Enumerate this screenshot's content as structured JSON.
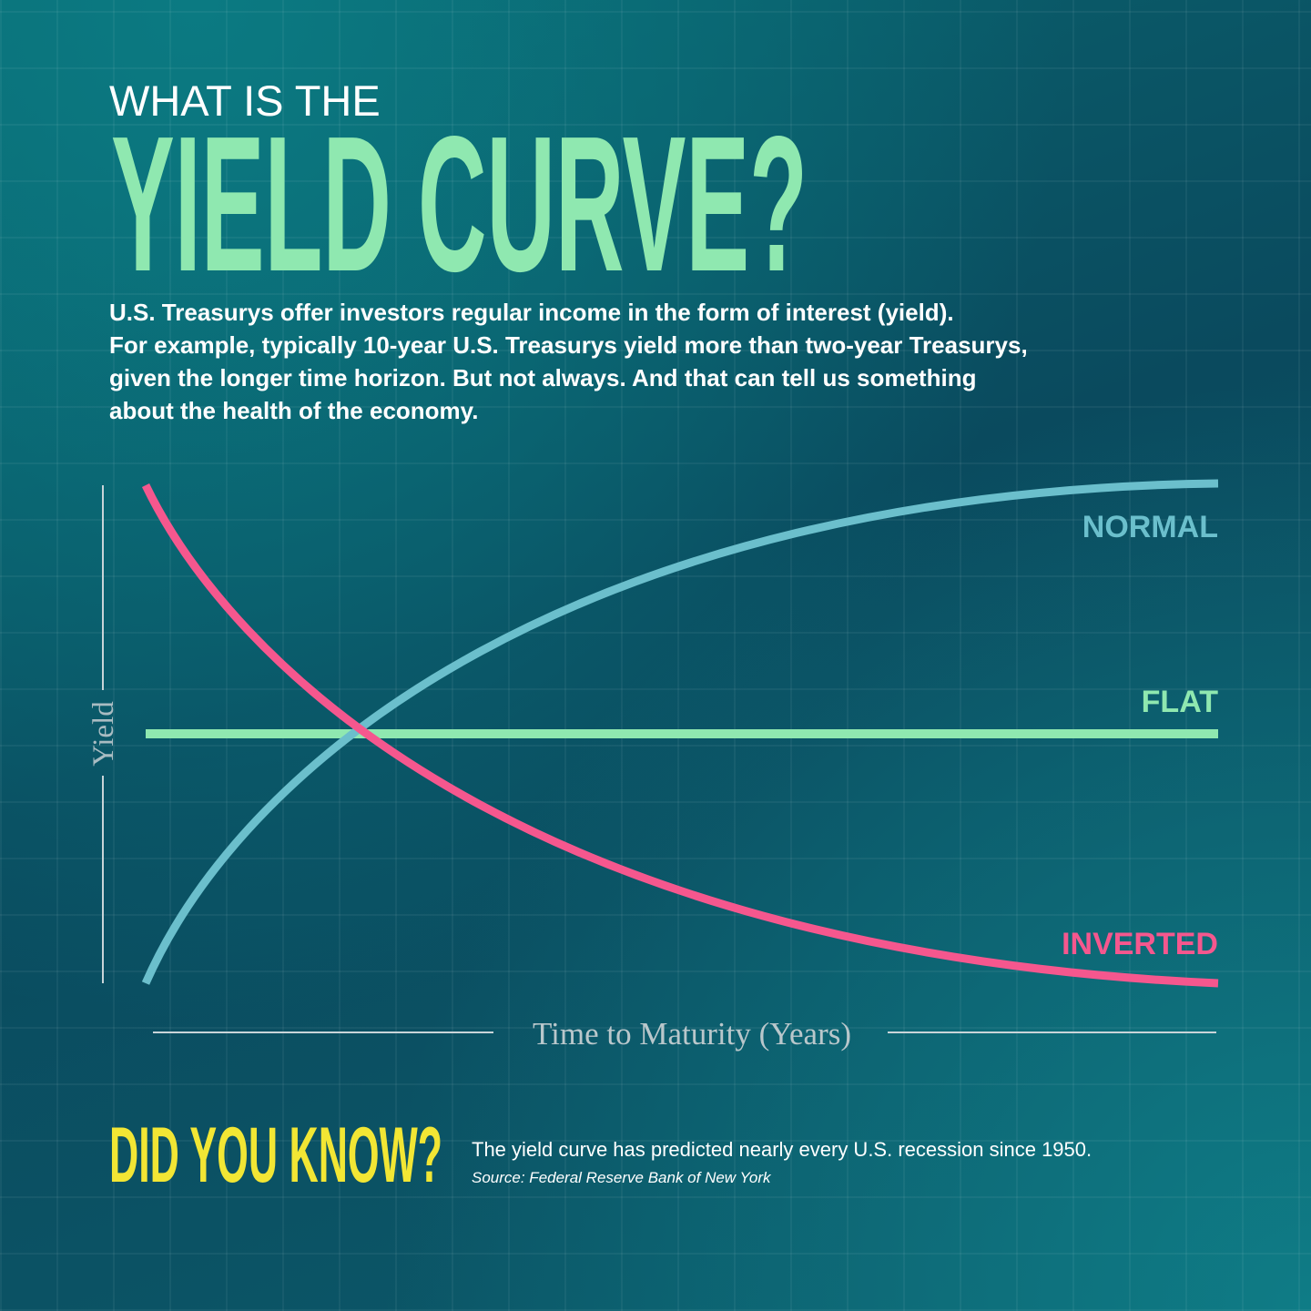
{
  "header": {
    "kicker": "WHAT IS THE",
    "title": "YIELD CURVE?"
  },
  "intro": {
    "lines": [
      "U.S. Treasurys offer investors regular income in the form of interest (yield).",
      "For example, typically 10-year U.S. Treasurys yield more than two-year Treasurys,",
      "given the longer time horizon. But not always. And that can tell us something",
      "about the health of the economy."
    ]
  },
  "chart": {
    "y_label": "Yield",
    "x_label": "Time to Maturity (Years)",
    "labels": {
      "normal": "NORMAL",
      "flat": "FLAT",
      "inverted": "INVERTED"
    }
  },
  "footer": {
    "heading": "DID YOU KNOW?",
    "text": "The yield curve has predicted nearly every U.S. recession since 1950.",
    "source": "Source: Federal Reserve Bank of New York"
  }
}
